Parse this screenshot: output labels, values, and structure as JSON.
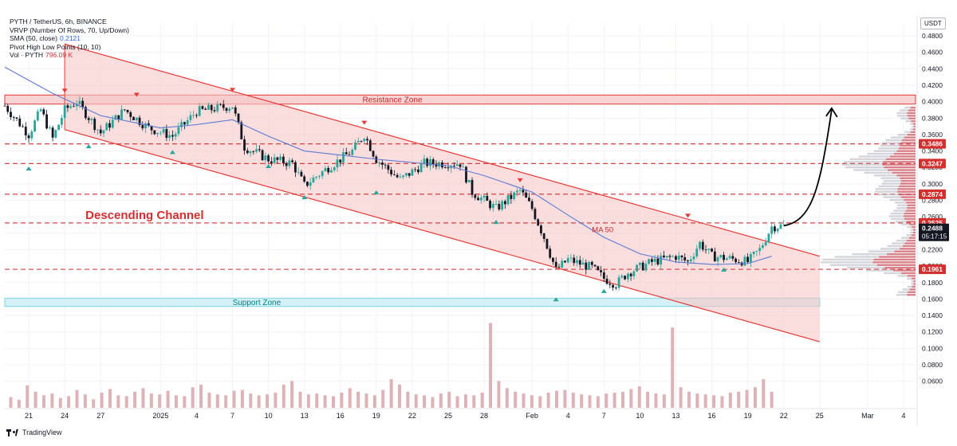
{
  "legend": {
    "symbol": "PYTH / TetherUS, 6h, BINANCE",
    "vrvp": "VRVP (Number Of Rows, 70, Up/Down)",
    "sma_label": "SMA (50, close)",
    "sma_value": "0.2121",
    "pivot": "Pivot High Low Points (10, 10)",
    "vol_label": "Vol · PYTH",
    "vol_value": "796.09 K"
  },
  "currency": "USDT",
  "footer": {
    "brand": "TradingView"
  },
  "colors": {
    "up": "#26a69a",
    "down": "#131722",
    "channel_fill": "#f7c6c6",
    "channel_line": "#e53935",
    "resistance_fill": "#f6cccc",
    "support_fill": "#cdeff3",
    "dashed_line": "#d32f2f",
    "sma": "#5b7bd5",
    "pivot_high": "#e53935",
    "pivot_low": "#26a69a",
    "volume": "#d8a6ab"
  },
  "chart_data": {
    "type": "candlestick",
    "symbol": "PYTH / TetherUS",
    "timeframe": "6h",
    "exchange": "BINANCE",
    "price_axis": {
      "range": [
        0.06,
        0.49
      ],
      "ticks": [
        "0.4800",
        "0.4600",
        "0.4400",
        "0.4200",
        "0.4000",
        "0.3800",
        "0.3600",
        "0.3400",
        "0.3200",
        "0.3000",
        "0.2800",
        "0.2600",
        "0.2400",
        "0.2200",
        "0.2000",
        "0.1800",
        "0.1600",
        "0.1400",
        "0.1200",
        "0.1000",
        "0.0800",
        "0.0600"
      ],
      "tick_values": [
        0.48,
        0.46,
        0.44,
        0.42,
        0.4,
        0.38,
        0.36,
        0.34,
        0.32,
        0.3,
        0.28,
        0.26,
        0.24,
        0.22,
        0.2,
        0.18,
        0.16,
        0.14,
        0.12,
        0.1,
        0.08,
        0.06
      ]
    },
    "time_axis": {
      "ticks": [
        {
          "label": "21",
          "x_date": "2024-12-21"
        },
        {
          "label": "24",
          "x_date": "2024-12-24"
        },
        {
          "label": "27",
          "x_date": "2024-12-27"
        },
        {
          "label": "2025",
          "x_date": "2025-01-01"
        },
        {
          "label": "4",
          "x_date": "2025-01-04"
        },
        {
          "label": "7",
          "x_date": "2025-01-07"
        },
        {
          "label": "10",
          "x_date": "2025-01-10"
        },
        {
          "label": "13",
          "x_date": "2025-01-13"
        },
        {
          "label": "16",
          "x_date": "2025-01-16"
        },
        {
          "label": "19",
          "x_date": "2025-01-19"
        },
        {
          "label": "22",
          "x_date": "2025-01-22"
        },
        {
          "label": "25",
          "x_date": "2025-01-25"
        },
        {
          "label": "28",
          "x_date": "2025-01-28"
        },
        {
          "label": "Feb",
          "x_date": "2025-02-01"
        },
        {
          "label": "4",
          "x_date": "2025-02-04"
        },
        {
          "label": "7",
          "x_date": "2025-02-07"
        },
        {
          "label": "10",
          "x_date": "2025-02-10"
        },
        {
          "label": "13",
          "x_date": "2025-02-13"
        },
        {
          "label": "16",
          "x_date": "2025-02-16"
        },
        {
          "label": "19",
          "x_date": "2025-02-19"
        },
        {
          "label": "22",
          "x_date": "2025-02-22"
        },
        {
          "label": "25",
          "x_date": "2025-02-25"
        },
        {
          "label": "Mar",
          "x_date": "2025-03-01"
        },
        {
          "label": "4",
          "x_date": "2025-03-04"
        }
      ],
      "range": [
        "2024-12-19",
        "2025-03-05"
      ]
    },
    "price_path": [
      {
        "date": "2024-12-19",
        "price": 0.395
      },
      {
        "date": "2024-12-21",
        "price": 0.36
      },
      {
        "date": "2024-12-22",
        "price": 0.39
      },
      {
        "date": "2024-12-23",
        "price": 0.355
      },
      {
        "date": "2024-12-24",
        "price": 0.39
      },
      {
        "date": "2024-12-25",
        "price": 0.4
      },
      {
        "date": "2024-12-27",
        "price": 0.362
      },
      {
        "date": "2024-12-29",
        "price": 0.39
      },
      {
        "date": "2024-12-31",
        "price": 0.368
      },
      {
        "date": "2025-01-02",
        "price": 0.358
      },
      {
        "date": "2025-01-04",
        "price": 0.388
      },
      {
        "date": "2025-01-07",
        "price": 0.395
      },
      {
        "date": "2025-01-08",
        "price": 0.345
      },
      {
        "date": "2025-01-10",
        "price": 0.33
      },
      {
        "date": "2025-01-12",
        "price": 0.325
      },
      {
        "date": "2025-01-13",
        "price": 0.298
      },
      {
        "date": "2025-01-15",
        "price": 0.32
      },
      {
        "date": "2025-01-17",
        "price": 0.34
      },
      {
        "date": "2025-01-18",
        "price": 0.36
      },
      {
        "date": "2025-01-19",
        "price": 0.33
      },
      {
        "date": "2025-01-21",
        "price": 0.305
      },
      {
        "date": "2025-01-23",
        "price": 0.325
      },
      {
        "date": "2025-01-26",
        "price": 0.325
      },
      {
        "date": "2025-01-27",
        "price": 0.29
      },
      {
        "date": "2025-01-29",
        "price": 0.27
      },
      {
        "date": "2025-01-31",
        "price": 0.292
      },
      {
        "date": "2025-02-01",
        "price": 0.27
      },
      {
        "date": "2025-02-02",
        "price": 0.235
      },
      {
        "date": "2025-02-03",
        "price": 0.195
      },
      {
        "date": "2025-02-04",
        "price": 0.208
      },
      {
        "date": "2025-02-06",
        "price": 0.198
      },
      {
        "date": "2025-02-07",
        "price": 0.185
      },
      {
        "date": "2025-02-08",
        "price": 0.178
      },
      {
        "date": "2025-02-09",
        "price": 0.192
      },
      {
        "date": "2025-02-11",
        "price": 0.205
      },
      {
        "date": "2025-02-13",
        "price": 0.212
      },
      {
        "date": "2025-02-14",
        "price": 0.205
      },
      {
        "date": "2025-02-15",
        "price": 0.228
      },
      {
        "date": "2025-02-16",
        "price": 0.212
      },
      {
        "date": "2025-02-18",
        "price": 0.208
      },
      {
        "date": "2025-02-19",
        "price": 0.205
      },
      {
        "date": "2025-02-20",
        "price": 0.22
      },
      {
        "date": "2025-02-21",
        "price": 0.248
      },
      {
        "date": "2025-02-22",
        "price": 0.249
      }
    ],
    "sma50": [
      {
        "date": "2024-12-19",
        "price": 0.442
      },
      {
        "date": "2024-12-23",
        "price": 0.41
      },
      {
        "date": "2024-12-27",
        "price": 0.383
      },
      {
        "date": "2025-01-01",
        "price": 0.368
      },
      {
        "date": "2025-01-04",
        "price": 0.372
      },
      {
        "date": "2025-01-07",
        "price": 0.378
      },
      {
        "date": "2025-01-10",
        "price": 0.358
      },
      {
        "date": "2025-01-13",
        "price": 0.34
      },
      {
        "date": "2025-01-16",
        "price": 0.335
      },
      {
        "date": "2025-01-19",
        "price": 0.33
      },
      {
        "date": "2025-01-22",
        "price": 0.326
      },
      {
        "date": "2025-01-25",
        "price": 0.322
      },
      {
        "date": "2025-01-28",
        "price": 0.31
      },
      {
        "date": "2025-02-01",
        "price": 0.29
      },
      {
        "date": "2025-02-04",
        "price": 0.262
      },
      {
        "date": "2025-02-07",
        "price": 0.235
      },
      {
        "date": "2025-02-10",
        "price": 0.215
      },
      {
        "date": "2025-02-13",
        "price": 0.205
      },
      {
        "date": "2025-02-16",
        "price": 0.202
      },
      {
        "date": "2025-02-19",
        "price": 0.203
      },
      {
        "date": "2025-02-21",
        "price": 0.212
      }
    ],
    "volume": {
      "values_k": [
        120,
        90,
        250,
        180,
        140,
        160,
        110,
        130,
        200,
        150,
        95,
        170,
        210,
        140,
        130,
        180,
        220,
        160,
        150,
        190,
        140,
        130,
        230,
        260,
        170,
        150,
        140,
        190,
        200,
        160,
        140,
        150,
        170,
        260,
        300,
        180,
        150,
        160,
        140,
        130,
        170,
        220,
        180,
        160,
        140,
        200,
        320,
        260,
        180,
        150,
        140,
        120,
        160,
        180,
        130,
        150,
        140,
        170,
        950,
        300,
        220,
        180,
        160,
        140,
        130,
        170,
        190,
        200,
        170,
        150,
        140,
        130,
        160,
        170,
        180,
        210,
        240,
        180,
        160,
        150,
        900,
        230,
        180,
        160,
        150,
        140,
        130,
        170,
        180,
        200,
        230,
        320,
        180
      ],
      "range_k": [
        0,
        1000
      ]
    },
    "channel": {
      "upper": [
        {
          "date": "2024-12-24",
          "price": 0.47
        },
        {
          "date": "2025-02-25",
          "price": 0.212
        }
      ],
      "lower": [
        {
          "date": "2024-12-24",
          "price": 0.366
        },
        {
          "date": "2025-02-25",
          "price": 0.108
        }
      ]
    },
    "zones": [
      {
        "name": "Resistance Zone",
        "from": 0.397,
        "to": 0.408,
        "start": "2024-12-19",
        "end": "2025-03-05"
      },
      {
        "name": "Support Zone",
        "from": 0.151,
        "to": 0.161,
        "start": "2024-12-19",
        "end": "2025-02-25"
      }
    ],
    "horizontal_levels": [
      {
        "value": 0.3486,
        "label": "0.3486"
      },
      {
        "value": 0.3247,
        "label": "0.3247"
      },
      {
        "value": 0.2874,
        "label": "0.2874"
      },
      {
        "value": 0.2525,
        "label": "0.2525"
      },
      {
        "value": 0.1961,
        "label": "0.1961"
      }
    ],
    "current_price": {
      "value": 0.2488,
      "label": "0.2488",
      "countdown": "05:17:15"
    },
    "pivot_highs": [
      {
        "date": "2024-12-24",
        "price": 0.407
      },
      {
        "date": "2024-12-30",
        "price": 0.402
      },
      {
        "date": "2025-01-07",
        "price": 0.408
      },
      {
        "date": "2025-01-18",
        "price": 0.368
      },
      {
        "date": "2025-01-31",
        "price": 0.298
      },
      {
        "date": "2025-02-14",
        "price": 0.255
      }
    ],
    "pivot_lows": [
      {
        "date": "2024-12-21",
        "price": 0.325
      },
      {
        "date": "2024-12-26",
        "price": 0.352
      },
      {
        "date": "2025-01-02",
        "price": 0.345
      },
      {
        "date": "2025-01-10",
        "price": 0.328
      },
      {
        "date": "2025-01-13",
        "price": 0.29
      },
      {
        "date": "2025-01-19",
        "price": 0.296
      },
      {
        "date": "2025-01-29",
        "price": 0.26
      },
      {
        "date": "2025-02-03",
        "price": 0.166
      },
      {
        "date": "2025-02-07",
        "price": 0.176
      },
      {
        "date": "2025-02-17",
        "price": 0.202
      }
    ],
    "projection_arrow": {
      "points": [
        {
          "date": "2025-02-22",
          "price": 0.249
        },
        {
          "date": "2025-02-23",
          "price": 0.26
        },
        {
          "date": "2025-02-25",
          "price": 0.33
        },
        {
          "date": "2025-02-26",
          "price": 0.39
        }
      ]
    },
    "annotations": [
      {
        "text": "Descending Channel",
        "date": "2024-12-26",
        "price": 0.263
      },
      {
        "text": "MA 50",
        "date": "2025-02-06",
        "price": 0.244
      }
    ]
  }
}
